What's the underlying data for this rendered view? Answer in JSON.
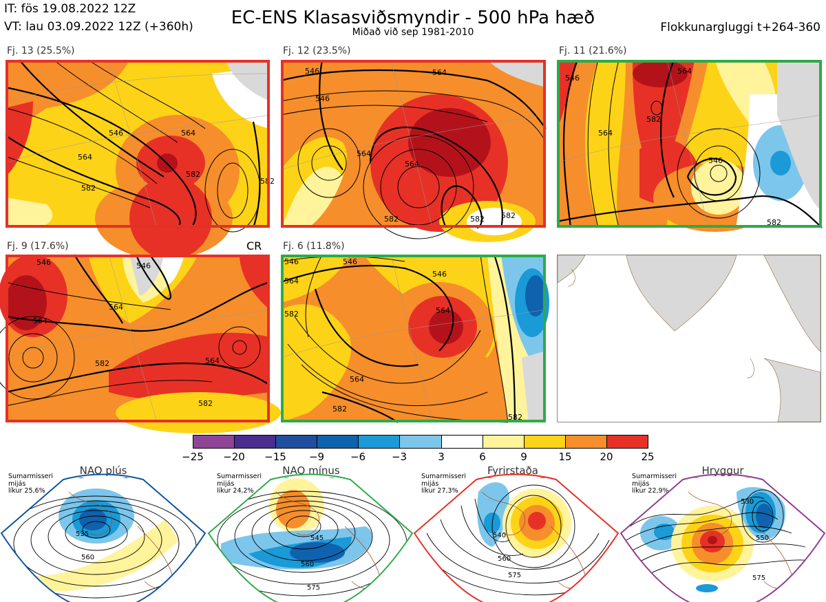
{
  "header": {
    "it_line": "IT: fös 19.08.2022 12Z",
    "vt_line": "VT: lau 03.09.2022 12Z  (+360h)",
    "title": "EC-ENS Klasasviðsmyndir - 500 hPa hæð",
    "subtitle": "Miðað við sep 1981-2010",
    "window": "Flokkunargluggi t+264-360"
  },
  "panels": [
    {
      "label": "Fj. 13 (25.5%)",
      "border_color": "#e53027",
      "contours": [
        "546",
        "564",
        "582",
        "564",
        "582",
        "582"
      ]
    },
    {
      "label": "Fj. 12 (23.5%)",
      "border_color": "#e53027",
      "contours": [
        "546",
        "564",
        "564",
        "546",
        "564",
        "582",
        "582",
        "582"
      ]
    },
    {
      "label": "Fj. 11 (21.6%)",
      "border_color": "#2eaa49",
      "contours": [
        "546",
        "564",
        "582",
        "564",
        "546",
        "582"
      ]
    },
    {
      "label": "Fj. 9 (17.6%)",
      "border_color": "#e53027",
      "cr": "CR",
      "contours": [
        "546",
        "564",
        "546",
        "564",
        "582",
        "564",
        "582"
      ]
    },
    {
      "label": "Fj. 6 (11.8%)",
      "border_color": "#2eaa49",
      "contours": [
        "546",
        "546",
        "564",
        "582",
        "546",
        "564",
        "564",
        "582",
        "582"
      ]
    }
  ],
  "colorbar": {
    "labels": [
      "−25",
      "−20",
      "−15",
      "−9",
      "−6",
      "−3",
      "3",
      "6",
      "9",
      "15",
      "20",
      "25"
    ],
    "colors": [
      "#8e4596",
      "#4b2d8f",
      "#1f4f9d",
      "#0f62ad",
      "#1a9ad6",
      "#7cc6ec",
      "#ffffff",
      "#fff39c",
      "#fdd317",
      "#f68e2b",
      "#e73126",
      "#b4121b"
    ]
  },
  "regimes": [
    {
      "title": "NAO plús",
      "color": "#0d53a1",
      "info": "Sumarmisseri\nmijás\nlíkur 25,6%",
      "labels": [
        "535",
        "560"
      ]
    },
    {
      "title": "NAO mínus",
      "color": "#2eaa49",
      "info": "Sumarmisseri\nmijás\nlíkur 24,2%",
      "labels": [
        "545",
        "560",
        "575"
      ]
    },
    {
      "title": "Fyrirstaða",
      "color": "#e53027",
      "info": "Sumarmisseri\nmijás\nlíkur 27,3%",
      "labels": [
        "540",
        "560",
        "575"
      ]
    },
    {
      "title": "Hryggur",
      "color": "#ee6ee6",
      "info": "Sumarmisseri\nmijás\nlíkur 22,9%",
      "labels": [
        "530",
        "550",
        "575"
      ]
    }
  ]
}
